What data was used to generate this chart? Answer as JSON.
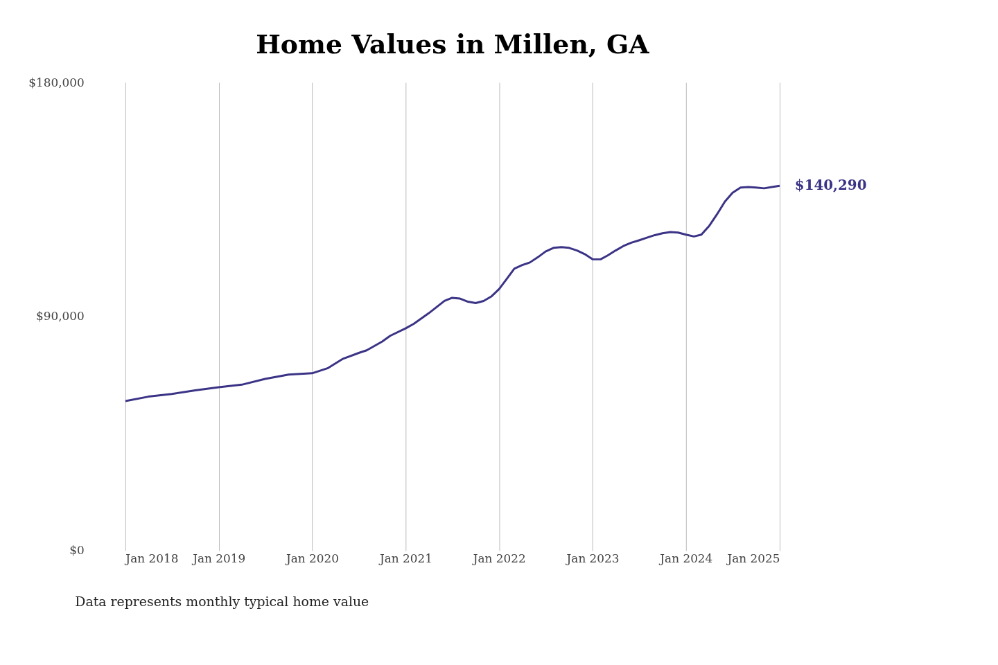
{
  "chart_data": {
    "type": "line",
    "title": "Home Values in Millen, GA",
    "annotations": [
      "Data represents monthly typical home value"
    ],
    "x": [
      "2018-01",
      "2018-04",
      "2018-07",
      "2018-10",
      "2019-01",
      "2019-04",
      "2019-07",
      "2019-10",
      "2020-01",
      "2020-03",
      "2020-05",
      "2020-07",
      "2020-08",
      "2020-10",
      "2020-11",
      "2021-01",
      "2021-02",
      "2021-04",
      "2021-06",
      "2021-07",
      "2021-08",
      "2021-09",
      "2021-10",
      "2021-11",
      "2021-12",
      "2022-01",
      "2022-02",
      "2022-03",
      "2022-04",
      "2022-05",
      "2022-06",
      "2022-07",
      "2022-08",
      "2022-09",
      "2022-10",
      "2022-11",
      "2022-12",
      "2023-01",
      "2023-02",
      "2023-03",
      "2023-04",
      "2023-05",
      "2023-06",
      "2023-07",
      "2023-08",
      "2023-09",
      "2023-10",
      "2023-11",
      "2023-12",
      "2024-01",
      "2024-02",
      "2024-03",
      "2024-04",
      "2024-05",
      "2024-06",
      "2024-07",
      "2024-08",
      "2024-09",
      "2024-10",
      "2024-11",
      "2024-12",
      "2025-01"
    ],
    "series": [
      {
        "color": "#3b3486",
        "values": [
          57500,
          59200,
          60200,
          61600,
          62800,
          63800,
          66000,
          67700,
          68200,
          70100,
          73800,
          76000,
          77000,
          80400,
          82600,
          85500,
          87200,
          91300,
          96000,
          97200,
          96900,
          95700,
          95200,
          96000,
          97700,
          100600,
          104700,
          108400,
          109800,
          110800,
          112800,
          115000,
          116400,
          116700,
          116400,
          115400,
          114000,
          112000,
          112000,
          113500,
          115400,
          117100,
          118400,
          119300,
          120300,
          121300,
          122000,
          122500,
          122300,
          121500,
          120800,
          121500,
          124900,
          129300,
          134200,
          137600,
          139600,
          139800,
          139600,
          139300,
          139800,
          140290
        ],
        "value_labels": [
          null,
          null,
          null,
          null,
          null,
          null,
          null,
          null,
          null,
          null,
          null,
          null,
          null,
          null,
          null,
          null,
          null,
          null,
          null,
          null,
          null,
          null,
          null,
          null,
          null,
          null,
          null,
          null,
          null,
          null,
          null,
          null,
          null,
          null,
          null,
          null,
          null,
          null,
          null,
          null,
          null,
          null,
          null,
          null,
          null,
          null,
          null,
          null,
          null,
          null,
          null,
          null,
          null,
          null,
          null,
          null,
          null,
          null,
          null,
          null,
          null,
          "$140,290"
        ]
      }
    ],
    "xlim": [
      "2018-01",
      "2025-01"
    ],
    "xticks": [
      {
        "value": "2018-01",
        "label": "Jan 2018"
      },
      {
        "value": "2019-01",
        "label": "Jan 2019"
      },
      {
        "value": "2020-01",
        "label": "Jan 2020"
      },
      {
        "value": "2021-01",
        "label": "Jan 2021"
      },
      {
        "value": "2022-01",
        "label": "Jan 2022"
      },
      {
        "value": "2023-01",
        "label": "Jan 2023"
      },
      {
        "value": "2024-01",
        "label": "Jan 2024"
      },
      {
        "value": "2025-01",
        "label": "Jan 2025"
      }
    ],
    "ylim": [
      0,
      180000
    ],
    "yticks": [
      {
        "value": 0,
        "label": "$0"
      },
      {
        "value": 90000,
        "label": "$90,000"
      },
      {
        "value": 180000,
        "label": "$180,000"
      }
    ],
    "grid": "x",
    "marker": "none",
    "line_style": "solid"
  }
}
